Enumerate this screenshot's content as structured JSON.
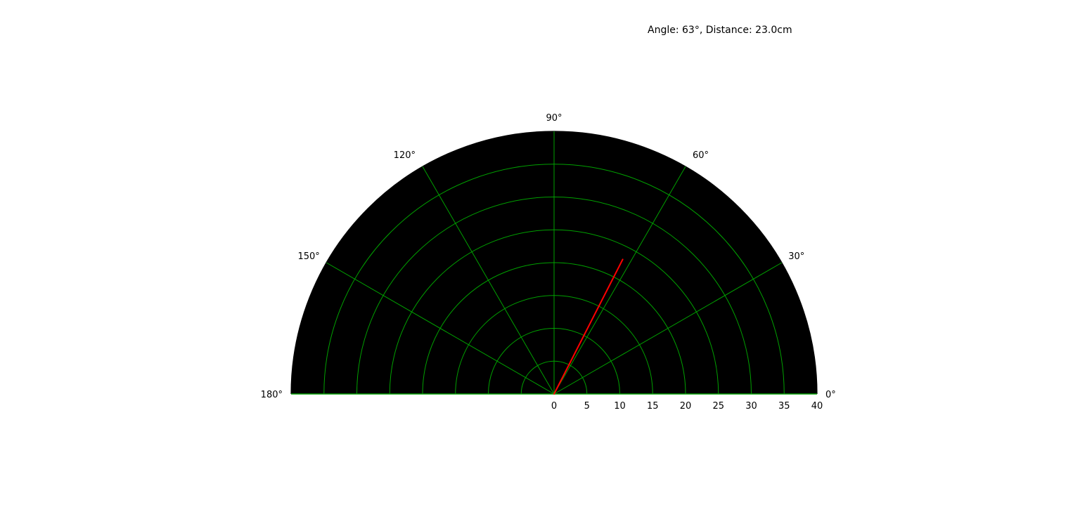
{
  "status": {
    "readout": "Angle: 63°, Distance: 23.0cm"
  },
  "chart_data": {
    "type": "polar",
    "theta_range_deg": [
      0,
      180
    ],
    "r_range": [
      0,
      40
    ],
    "angle_ticks": [
      0,
      30,
      60,
      90,
      120,
      150,
      180
    ],
    "angle_tick_labels": [
      "0°",
      "30°",
      "60°",
      "90°",
      "120°",
      "150°",
      "180°"
    ],
    "radial_ticks": [
      0,
      5,
      10,
      15,
      20,
      25,
      30,
      35,
      40
    ],
    "radial_tick_labels": [
      "0",
      "5",
      "10",
      "15",
      "20",
      "25",
      "30",
      "35",
      "40"
    ],
    "grid": true,
    "colors": {
      "background": "#000000",
      "grid": "#00a000",
      "sweep": "#ff0000",
      "frame": "#000000"
    },
    "sweep": {
      "angle_deg": 63,
      "distance": 23.0
    }
  }
}
